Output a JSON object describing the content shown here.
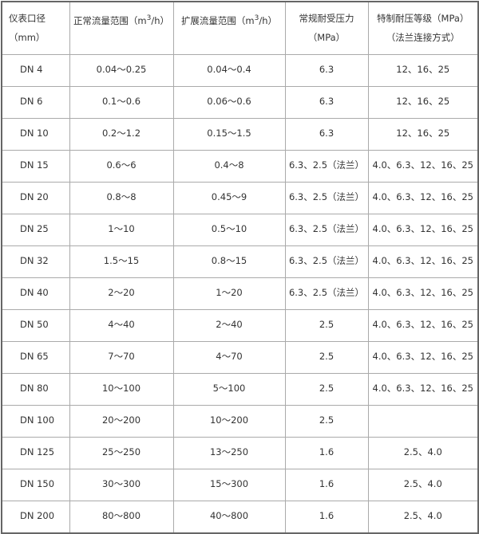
{
  "headers": {
    "diameter": "仪表口径（mm）",
    "normal_flow_pre": "正常流量范围（m",
    "normal_flow_sup": "3",
    "normal_flow_post": "/h）",
    "extended_flow_pre": "扩展流量范围（m",
    "extended_flow_sup": "3",
    "extended_flow_post": "/h）",
    "normal_pressure": "常规耐受压力（MPa）",
    "special_pressure": "特制耐压等级（MPa）（法兰连接方式）"
  },
  "rows": [
    [
      "DN 4",
      "0.04～0.25",
      "0.04～0.4",
      "6.3",
      "12、16、25"
    ],
    [
      "DN 6",
      "0.1～0.6",
      "0.06～0.6",
      "6.3",
      "12、16、25"
    ],
    [
      "DN 10",
      "0.2～1.2",
      "0.15～1.5",
      "6.3",
      "12、16、25"
    ],
    [
      "DN 15",
      "0.6～6",
      "0.4～8",
      "6.3、2.5（法兰）",
      "4.0、6.3、12、16、25"
    ],
    [
      "DN 20",
      "0.8～8",
      "0.45～9",
      "6.3、2.5（法兰）",
      "4.0、6.3、12、16、25"
    ],
    [
      "DN 25",
      "1～10",
      "0.5～10",
      "6.3、2.5（法兰）",
      "4.0、6.3、12、16、25"
    ],
    [
      "DN 32",
      "1.5～15",
      "0.8～15",
      "6.3、2.5（法兰）",
      "4.0、6.3、12、16、25"
    ],
    [
      "DN 40",
      "2～20",
      "1～20",
      "6.3、2.5（法兰）",
      "4.0、6.3、12、16、25"
    ],
    [
      "DN 50",
      "4～40",
      "2～40",
      "2.5",
      "4.0、6.3、12、16、25"
    ],
    [
      "DN 65",
      "7～70",
      "4～70",
      "2.5",
      "4.0、6.3、12、16、25"
    ],
    [
      "DN 80",
      "10～100",
      "5～100",
      "2.5",
      "4.0、6.3、12、16、25"
    ],
    [
      "DN 100",
      "20～200",
      "10～200",
      "2.5",
      ""
    ],
    [
      "DN 125",
      "25～250",
      "13～250",
      "1.6",
      "2.5、4.0"
    ],
    [
      "DN 150",
      "30～300",
      "15～300",
      "1.6",
      "2.5、4.0"
    ],
    [
      "DN 200",
      "80～800",
      "40～800",
      "1.6",
      "2.5、4.0"
    ]
  ]
}
